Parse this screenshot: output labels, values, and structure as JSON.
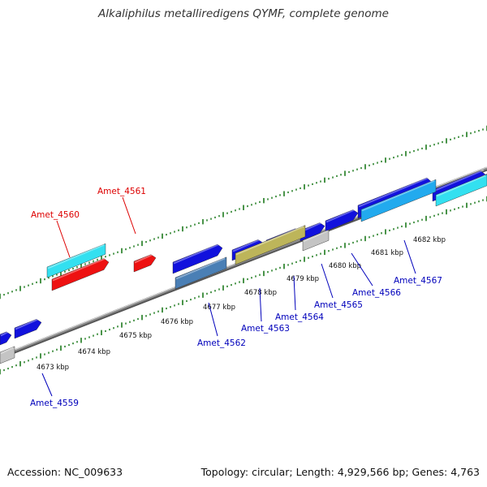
{
  "title": "Alkaliphilus metalliredigens QYMF, complete genome",
  "footer": {
    "accession": "Accession: NC_009633",
    "topology": "Topology: circular; Length: 4,929,566 bp; Genes: 4,763"
  },
  "colors": {
    "backbone": "#8a8a8a",
    "tick": "#1d7a1d",
    "blue_gene": "#1111dd",
    "cyan_gene": "#33e0f0",
    "red_gene": "#ee1111",
    "steel_gene": "#4a7fb5",
    "olive_gene": "#bdb55a",
    "gray_gene": "#c4c4c4",
    "skyblue_gene": "#22aaee",
    "label_blue": "#0000bb",
    "label_red": "#dd0000"
  },
  "kbp_ticks": [
    "4673 kbp",
    "4674 kbp",
    "4675 kbp",
    "4676 kbp",
    "4677 kbp",
    "4678 kbp",
    "4679 kbp",
    "4680 kbp",
    "4681 kbp",
    "4682 kbp"
  ],
  "gene_labels": [
    {
      "name": "Amet_4559",
      "color": "label_blue"
    },
    {
      "name": "Amet_4560",
      "color": "label_red"
    },
    {
      "name": "Amet_4561",
      "color": "label_red"
    },
    {
      "name": "Amet_4562",
      "color": "label_blue"
    },
    {
      "name": "Amet_4563",
      "color": "label_blue"
    },
    {
      "name": "Amet_4564",
      "color": "label_blue"
    },
    {
      "name": "Amet_4565",
      "color": "label_blue"
    },
    {
      "name": "Amet_4566",
      "color": "label_blue"
    },
    {
      "name": "Amet_4567",
      "color": "label_blue"
    }
  ],
  "genes": [
    {
      "color": "blue_gene",
      "arrow": true
    },
    {
      "color": "blue_gene",
      "arrow": true
    },
    {
      "color": "red_gene",
      "arrow": true
    },
    {
      "color": "blue_gene",
      "arrow": true
    },
    {
      "color": "blue_gene",
      "arrow": true
    },
    {
      "color": "blue_gene",
      "arrow": true
    },
    {
      "color": "blue_gene",
      "arrow": true
    },
    {
      "color": "blue_gene",
      "arrow": true
    },
    {
      "color": "blue_gene",
      "arrow": true
    },
    {
      "color": "blue_gene",
      "arrow": true
    },
    {
      "color": "blue_gene",
      "arrow": true
    },
    {
      "color": "gray_gene",
      "arrow": false
    },
    {
      "color": "cyan_gene",
      "arrow": false
    },
    {
      "color": "red_gene",
      "arrow": true
    },
    {
      "color": "steel_gene",
      "arrow": false
    },
    {
      "color": "olive_gene",
      "arrow": false
    },
    {
      "color": "gray_gene",
      "arrow": false
    },
    {
      "color": "skyblue_gene",
      "arrow": false
    },
    {
      "color": "cyan_gene",
      "arrow": false
    }
  ]
}
